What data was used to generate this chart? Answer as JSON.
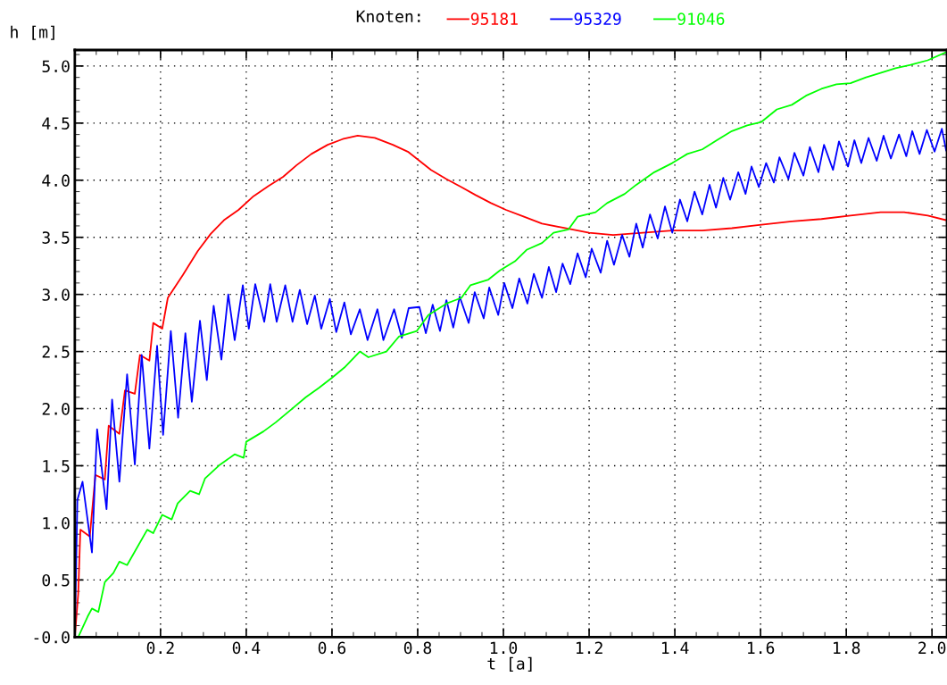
{
  "chart_data": {
    "type": "line",
    "xlabel": "t [a]",
    "ylabel": "h [m]",
    "legend_title": "Knoten:",
    "legend": "top",
    "grid": true,
    "line_style": "solid",
    "xlim": [
      0,
      2.035
    ],
    "ylim": [
      0,
      5.14
    ],
    "xticks": [
      0.2,
      0.4,
      0.6,
      0.8,
      {
        "value": 1,
        "label": "1.0"
      },
      1.2,
      1.4,
      1.6,
      1.8,
      {
        "value": 2,
        "label": "2.0"
      }
    ],
    "yticks": [
      {
        "value": 0,
        "label": "-0.0"
      },
      0.5,
      {
        "value": 1,
        "label": "1.0"
      },
      1.5,
      {
        "value": 2,
        "label": "2.0"
      },
      2.5,
      {
        "value": 3,
        "label": "3.0"
      },
      3.5,
      {
        "value": 4,
        "label": "4.0"
      },
      4.5,
      {
        "value": 5,
        "label": "5.0"
      }
    ],
    "series": [
      {
        "name": "95181",
        "color": "#ff0000",
        "x": [
          0,
          0.008,
          0.013,
          0.035,
          0.048,
          0.07,
          0.079,
          0.104,
          0.117,
          0.14,
          0.152,
          0.174,
          0.183,
          0.204,
          0.217,
          0.252,
          0.287,
          0.317,
          0.348,
          0.382,
          0.417,
          0.452,
          0.486,
          0.517,
          0.552,
          0.59,
          0.625,
          0.66,
          0.7,
          0.742,
          0.777,
          0.804,
          0.831,
          0.867,
          0.902,
          0.935,
          0.971,
          1.006,
          1.048,
          1.09,
          1.144,
          1.2,
          1.256,
          1.325,
          1.394,
          1.464,
          1.533,
          1.602,
          1.673,
          1.742,
          1.81,
          1.88,
          1.935,
          1.99,
          2.033
        ],
        "values": [
          0,
          0.38,
          0.94,
          0.88,
          1.42,
          1.38,
          1.85,
          1.78,
          2.16,
          2.13,
          2.47,
          2.42,
          2.75,
          2.7,
          2.97,
          3.17,
          3.38,
          3.53,
          3.65,
          3.74,
          3.86,
          3.95,
          4.03,
          4.13,
          4.23,
          4.31,
          4.36,
          4.39,
          4.37,
          4.31,
          4.25,
          4.17,
          4.09,
          4.01,
          3.94,
          3.87,
          3.8,
          3.74,
          3.68,
          3.62,
          3.58,
          3.54,
          3.52,
          3.54,
          3.56,
          3.56,
          3.58,
          3.61,
          3.64,
          3.66,
          3.69,
          3.72,
          3.72,
          3.69,
          3.65
        ]
      },
      {
        "name": "95329",
        "color": "#0000ff",
        "x": [
          0,
          0.006,
          0.018,
          0.04,
          0.052,
          0.074,
          0.087,
          0.104,
          0.122,
          0.14,
          0.156,
          0.174,
          0.192,
          0.206,
          0.224,
          0.241,
          0.258,
          0.273,
          0.292,
          0.308,
          0.324,
          0.342,
          0.358,
          0.373,
          0.392,
          0.406,
          0.421,
          0.442,
          0.456,
          0.471,
          0.491,
          0.508,
          0.525,
          0.542,
          0.56,
          0.575,
          0.595,
          0.61,
          0.629,
          0.644,
          0.665,
          0.683,
          0.706,
          0.72,
          0.745,
          0.763,
          0.779,
          0.804,
          0.819,
          0.835,
          0.852,
          0.867,
          0.883,
          0.898,
          0.919,
          0.933,
          0.954,
          0.967,
          0.988,
          1.002,
          1.021,
          1.037,
          1.056,
          1.071,
          1.09,
          1.106,
          1.123,
          1.138,
          1.156,
          1.173,
          1.192,
          1.206,
          1.227,
          1.242,
          1.258,
          1.277,
          1.294,
          1.31,
          1.325,
          1.342,
          1.36,
          1.377,
          1.394,
          1.412,
          1.429,
          1.446,
          1.464,
          1.481,
          1.496,
          1.513,
          1.529,
          1.548,
          1.565,
          1.579,
          1.596,
          1.613,
          1.631,
          1.644,
          1.665,
          1.679,
          1.7,
          1.715,
          1.735,
          1.748,
          1.769,
          1.783,
          1.804,
          1.819,
          1.835,
          1.852,
          1.871,
          1.887,
          1.904,
          1.923,
          1.94,
          1.954,
          1.971,
          1.988,
          2.006,
          2.023,
          2.033
        ],
        "values": [
          0,
          1.2,
          1.36,
          0.74,
          1.82,
          1.12,
          2.08,
          1.36,
          2.3,
          1.51,
          2.47,
          1.65,
          2.55,
          1.77,
          2.68,
          1.92,
          2.66,
          2.06,
          2.77,
          2.25,
          2.9,
          2.43,
          3.0,
          2.6,
          3.08,
          2.7,
          3.09,
          2.76,
          3.09,
          2.76,
          3.08,
          2.76,
          3.04,
          2.74,
          2.99,
          2.7,
          2.96,
          2.67,
          2.93,
          2.65,
          2.87,
          2.6,
          2.87,
          2.6,
          2.87,
          2.62,
          2.88,
          2.89,
          2.66,
          2.91,
          2.68,
          2.95,
          2.71,
          2.98,
          2.75,
          3.02,
          2.79,
          3.06,
          2.82,
          3.1,
          2.88,
          3.14,
          2.92,
          3.18,
          2.97,
          3.24,
          3.02,
          3.27,
          3.09,
          3.36,
          3.15,
          3.4,
          3.19,
          3.47,
          3.26,
          3.52,
          3.33,
          3.62,
          3.41,
          3.7,
          3.49,
          3.77,
          3.54,
          3.83,
          3.64,
          3.9,
          3.7,
          3.96,
          3.76,
          4.02,
          3.83,
          4.07,
          3.88,
          4.12,
          3.94,
          4.15,
          3.98,
          4.2,
          4.01,
          4.24,
          4.04,
          4.29,
          4.07,
          4.31,
          4.09,
          4.34,
          4.12,
          4.35,
          4.15,
          4.37,
          4.17,
          4.39,
          4.19,
          4.4,
          4.21,
          4.43,
          4.23,
          4.44,
          4.25,
          4.45,
          4.26
        ]
      },
      {
        "name": "91046",
        "color": "#00ff00",
        "x": [
          0.008,
          0.03,
          0.04,
          0.055,
          0.07,
          0.09,
          0.104,
          0.122,
          0.169,
          0.183,
          0.204,
          0.226,
          0.24,
          0.269,
          0.29,
          0.304,
          0.339,
          0.373,
          0.394,
          0.4,
          0.44,
          0.469,
          0.504,
          0.539,
          0.569,
          0.6,
          0.629,
          0.665,
          0.685,
          0.727,
          0.756,
          0.798,
          0.825,
          0.867,
          0.902,
          0.923,
          0.965,
          0.992,
          1.027,
          1.054,
          1.09,
          1.117,
          1.152,
          1.173,
          1.215,
          1.242,
          1.283,
          1.31,
          1.352,
          1.394,
          1.429,
          1.464,
          1.498,
          1.533,
          1.569,
          1.602,
          1.638,
          1.673,
          1.706,
          1.742,
          1.777,
          1.81,
          1.846,
          1.88,
          1.915,
          1.95,
          1.99,
          2.033
        ],
        "values": [
          0.0,
          0.18,
          0.25,
          0.22,
          0.48,
          0.56,
          0.66,
          0.63,
          0.94,
          0.91,
          1.07,
          1.03,
          1.17,
          1.28,
          1.25,
          1.39,
          1.51,
          1.6,
          1.57,
          1.71,
          1.8,
          1.88,
          1.99,
          2.1,
          2.18,
          2.27,
          2.36,
          2.5,
          2.45,
          2.5,
          2.63,
          2.68,
          2.82,
          2.92,
          2.97,
          3.08,
          3.13,
          3.21,
          3.29,
          3.39,
          3.45,
          3.54,
          3.57,
          3.68,
          3.72,
          3.8,
          3.88,
          3.96,
          4.07,
          4.15,
          4.23,
          4.27,
          4.35,
          4.43,
          4.48,
          4.51,
          4.62,
          4.66,
          4.74,
          4.8,
          4.84,
          4.85,
          4.9,
          4.94,
          4.98,
          5.01,
          5.05,
          5.12
        ]
      }
    ]
  }
}
